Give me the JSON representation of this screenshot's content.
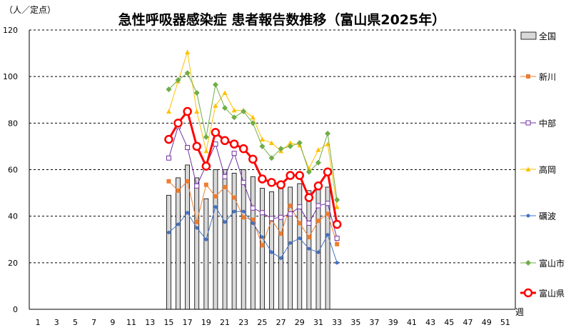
{
  "chart_data": {
    "type": "bar+line",
    "title": "急性呼吸器感染症 患者報告数推移（富山県2025年）",
    "ylabel": "（人／定点）",
    "xlabel": "週",
    "ylim": [
      0,
      120
    ],
    "yticks": [
      0,
      20,
      40,
      60,
      80,
      100,
      120
    ],
    "xlim": [
      0,
      52
    ],
    "xticks": [
      1,
      3,
      5,
      7,
      9,
      11,
      13,
      15,
      17,
      19,
      21,
      23,
      25,
      27,
      29,
      31,
      33,
      35,
      37,
      39,
      41,
      43,
      45,
      47,
      49,
      51
    ],
    "grid": "horizontal dashed",
    "legend_position": "right",
    "bar_series": {
      "name": "全国",
      "color": "#d9d9d9",
      "x": [
        15,
        16,
        17,
        18,
        19,
        20,
        21,
        22,
        23,
        24,
        25,
        26,
        27,
        28,
        29,
        30,
        31,
        32
      ],
      "values": [
        49,
        56.5,
        62,
        56.5,
        47.5,
        60,
        60,
        58.5,
        60,
        57,
        52,
        50.5,
        52,
        52.5,
        54,
        51,
        52,
        52.5
      ]
    },
    "line_series": [
      {
        "name": "新川",
        "color": "#ed7d31",
        "marker": "square-filled",
        "x": [
          15,
          16,
          17,
          18,
          19,
          20,
          21,
          22,
          23,
          24,
          25,
          26,
          27,
          28,
          29,
          30,
          31,
          32,
          33
        ],
        "values": [
          55,
          51,
          55,
          37.5,
          53.5,
          48.5,
          52.5,
          48,
          39.5,
          38.5,
          27.5,
          38.5,
          32.5,
          44.5,
          37,
          31,
          38,
          41,
          28
        ]
      },
      {
        "name": "中部",
        "color": "#7030a0",
        "marker": "square-open",
        "x": [
          15,
          16,
          17,
          18,
          19,
          20,
          21,
          22,
          23,
          24,
          25,
          26,
          27,
          28,
          29,
          30,
          31,
          32,
          33
        ],
        "values": [
          65,
          78.5,
          69.5,
          53,
          62,
          71,
          57,
          67,
          54.5,
          43.5,
          41.5,
          39,
          39.5,
          41,
          44,
          37,
          44.5,
          45.5,
          30.5
        ]
      },
      {
        "name": "高岡",
        "color": "#ffc000",
        "marker": "triangle",
        "x": [
          15,
          16,
          17,
          18,
          19,
          20,
          21,
          22,
          23,
          24,
          25,
          26,
          27,
          28,
          29,
          30,
          31,
          32,
          33
        ],
        "values": [
          85,
          98,
          110.5,
          85,
          68,
          87.5,
          93,
          85.5,
          85.5,
          82.5,
          73,
          71.5,
          68,
          71.5,
          70.5,
          60.5,
          68.5,
          71,
          44
        ]
      },
      {
        "name": "礪波",
        "color": "#4472c4",
        "marker": "circle-small",
        "x": [
          15,
          16,
          17,
          18,
          19,
          20,
          21,
          22,
          23,
          24,
          25,
          26,
          27,
          28,
          29,
          30,
          31,
          32,
          33
        ],
        "values": [
          33,
          36.5,
          41.5,
          35,
          30,
          44,
          37.5,
          42,
          42,
          37,
          31,
          24.5,
          22,
          28.5,
          30.5,
          26,
          24.5,
          32,
          20
        ]
      },
      {
        "name": "富山市",
        "color": "#70ad47",
        "marker": "diamond",
        "x": [
          15,
          16,
          17,
          18,
          19,
          20,
          21,
          22,
          23,
          24,
          25,
          26,
          27,
          28,
          29,
          30,
          31,
          32,
          33
        ],
        "values": [
          94.5,
          98.5,
          101.5,
          93,
          74,
          96.5,
          86.5,
          82.5,
          85,
          80,
          70,
          65,
          69,
          70,
          71.5,
          59,
          63,
          75.5,
          47
        ]
      },
      {
        "name": "富山県",
        "color": "#ff0000",
        "marker": "circle-large-open",
        "bold": true,
        "x": [
          15,
          16,
          17,
          18,
          19,
          20,
          21,
          22,
          23,
          24,
          25,
          26,
          27,
          28,
          29,
          30,
          31,
          32,
          33
        ],
        "values": [
          73,
          80,
          85,
          70,
          61.5,
          76,
          72.5,
          71,
          69,
          64.5,
          56,
          54.5,
          53.5,
          57.5,
          57.5,
          48,
          53,
          59,
          36.5
        ]
      }
    ]
  }
}
